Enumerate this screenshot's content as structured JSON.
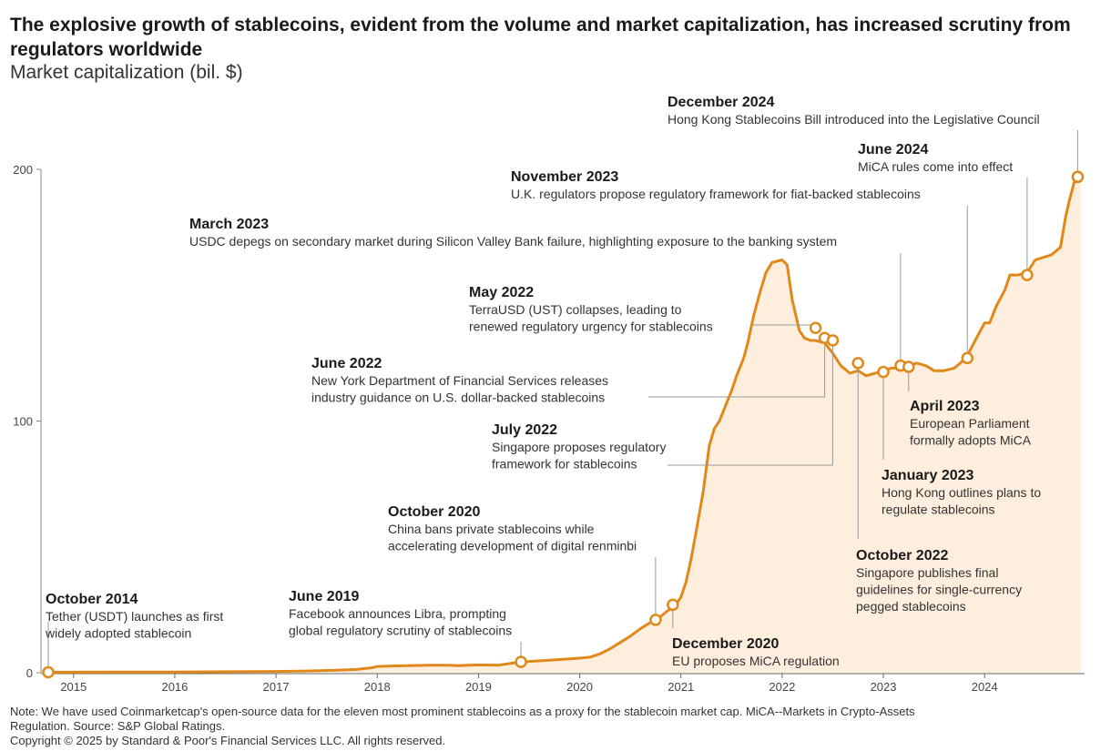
{
  "title": "The explosive growth of stablecoins, evident from the volume and market capitalization, has increased scrutiny from regulators worldwide",
  "subtitle": "Market capitalization (bil. $)",
  "notes": [
    "Note: We have used Coinmarketcap's open-source data for the eleven most prominent stablecoins as a proxy for the stablecoin market cap. MiCA--Markets in Crypto-Assets",
    "Regulation. Source: S&P Global Ratings.",
    "Copyright © 2025 by Standard & Poor's Financial Services LLC. All rights reserved."
  ],
  "chart_data": {
    "type": "area",
    "title": "The explosive growth of stablecoins, evident from the volume and market capitalization, has increased scrutiny from regulators worldwide",
    "ylabel": "Market capitalization (bil. $)",
    "xlabel": "",
    "ylim": [
      0,
      200
    ],
    "xlim": [
      2014.75,
      2024.97
    ],
    "yticks": [
      0,
      100,
      200
    ],
    "xticks": [
      2015,
      2016,
      2017,
      2018,
      2019,
      2020,
      2021,
      2022,
      2023,
      2024
    ],
    "xtick_labels": [
      "2015",
      "2016",
      "2017",
      "2018",
      "2019",
      "2020",
      "2021",
      "2022",
      "2023",
      "2024"
    ],
    "series": [
      {
        "name": "Stablecoin market capitalization",
        "color": "#e0891a",
        "fill": "#fdeedd",
        "x": [
          2014.75,
          2015.0,
          2015.5,
          2016.0,
          2016.5,
          2017.0,
          2017.3,
          2017.6,
          2017.8,
          2017.95,
          2018.0,
          2018.1,
          2018.3,
          2018.5,
          2018.7,
          2018.8,
          2018.9,
          2019.0,
          2019.2,
          2019.4,
          2019.5,
          2019.7,
          2019.9,
          2020.0,
          2020.1,
          2020.2,
          2020.3,
          2020.4,
          2020.5,
          2020.6,
          2020.7,
          2020.76,
          2020.85,
          2020.95,
          2021.0,
          2021.05,
          2021.1,
          2021.15,
          2021.22,
          2021.28,
          2021.33,
          2021.38,
          2021.42,
          2021.5,
          2021.55,
          2021.62,
          2021.66,
          2021.72,
          2021.78,
          2021.84,
          2021.9,
          2022.0,
          2022.05,
          2022.1,
          2022.17,
          2022.22,
          2022.28,
          2022.33,
          2022.42,
          2022.5,
          2022.58,
          2022.67,
          2022.75,
          2022.83,
          2022.92,
          2023.0,
          2023.08,
          2023.17,
          2023.25,
          2023.33,
          2023.42,
          2023.5,
          2023.6,
          2023.7,
          2023.76,
          2023.83,
          2023.92,
          2024.0,
          2024.05,
          2024.12,
          2024.2,
          2024.25,
          2024.33,
          2024.42,
          2024.5,
          2024.58,
          2024.66,
          2024.75,
          2024.8,
          2024.84,
          2024.9,
          2024.95
        ],
        "values": [
          0.2,
          0.2,
          0.3,
          0.3,
          0.4,
          0.5,
          0.7,
          1.0,
          1.3,
          2.0,
          2.5,
          2.6,
          2.8,
          3.0,
          3.0,
          2.8,
          3.0,
          3.1,
          3.0,
          4.2,
          4.5,
          5.0,
          5.5,
          5.8,
          6.2,
          7.5,
          9.5,
          12.0,
          14.5,
          17.5,
          20.0,
          21.0,
          24.0,
          27.0,
          30.0,
          36.0,
          45.0,
          56.0,
          72.0,
          90.0,
          97.0,
          100.0,
          104.0,
          112.0,
          118.0,
          125.0,
          131.0,
          142.0,
          151.0,
          159.0,
          163.0,
          164.0,
          162.0,
          148.0,
          136.0,
          133.0,
          132.0,
          132.0,
          131.0,
          127.0,
          122.0,
          119.0,
          120.0,
          118.0,
          119.0,
          120.0,
          121.0,
          121.0,
          122.0,
          123.0,
          122.0,
          120.0,
          120.0,
          121.0,
          123.0,
          126.0,
          133.0,
          139.0,
          139.0,
          146.0,
          152.0,
          158.0,
          158.0,
          159.0,
          164.0,
          165.0,
          166.0,
          169.0,
          181.0,
          188.0,
          197.0,
          199.0
        ]
      }
    ],
    "events": [
      {
        "x": 2014.75,
        "y": 0.2,
        "date": "October 2014",
        "lines": [
          "Tether (USDT) launches as first",
          "widely adopted stablecoin"
        ]
      },
      {
        "x": 2019.42,
        "y": 4.3,
        "date": "June 2019",
        "lines": [
          "Facebook announces Libra, prompting",
          "global regulatory scrutiny of stablecoins"
        ]
      },
      {
        "x": 2020.75,
        "y": 21.0,
        "date": "October 2020",
        "lines": [
          "China bans private stablecoins while",
          "accelerating development of digital renminbi"
        ]
      },
      {
        "x": 2020.92,
        "y": 27.0,
        "date": "December 2020",
        "lines": [
          "EU proposes MiCA regulation"
        ]
      },
      {
        "x": 2022.33,
        "y": 137.0,
        "date": "May 2022",
        "lines": [
          "TerraUSD (UST) collapses, leading to",
          "renewed regulatory urgency for stablecoins"
        ]
      },
      {
        "x": 2022.42,
        "y": 133.0,
        "date": "June 2022",
        "lines": [
          "New York Department of Financial Services releases",
          "industry guidance on U.S. dollar-backed stablecoins"
        ]
      },
      {
        "x": 2022.5,
        "y": 132.0,
        "date": "July 2022",
        "lines": [
          "Singapore proposes regulatory",
          "framework for stablecoins"
        ]
      },
      {
        "x": 2022.75,
        "y": 123.0,
        "date": "October 2022",
        "lines": [
          "Singapore publishes final",
          "guidelines for single-currency",
          "pegged stablecoins"
        ]
      },
      {
        "x": 2023.0,
        "y": 119.5,
        "date": "January 2023",
        "lines": [
          "Hong Kong outlines plans to",
          "regulate stablecoins"
        ]
      },
      {
        "x": 2023.17,
        "y": 122.0,
        "date": "March 2023",
        "lines": [
          "USDC depegs on secondary market during Silicon Valley Bank failure, highlighting exposure to the banking system"
        ]
      },
      {
        "x": 2023.25,
        "y": 121.5,
        "date": "April 2023",
        "lines": [
          "European Parliament",
          "formally adopts MiCA"
        ]
      },
      {
        "x": 2023.83,
        "y": 125.0,
        "date": "November 2023",
        "lines": [
          "U.K. regulators propose regulatory framework for fiat-backed stablecoins"
        ]
      },
      {
        "x": 2024.42,
        "y": 158.0,
        "date": "June 2024",
        "lines": [
          "MiCA rules come into effect"
        ]
      },
      {
        "x": 2024.92,
        "y": 197.0,
        "date": "December 2024",
        "lines": [
          "Hong Kong Stablecoins Bill introduced into the Legislative Council"
        ]
      }
    ]
  }
}
